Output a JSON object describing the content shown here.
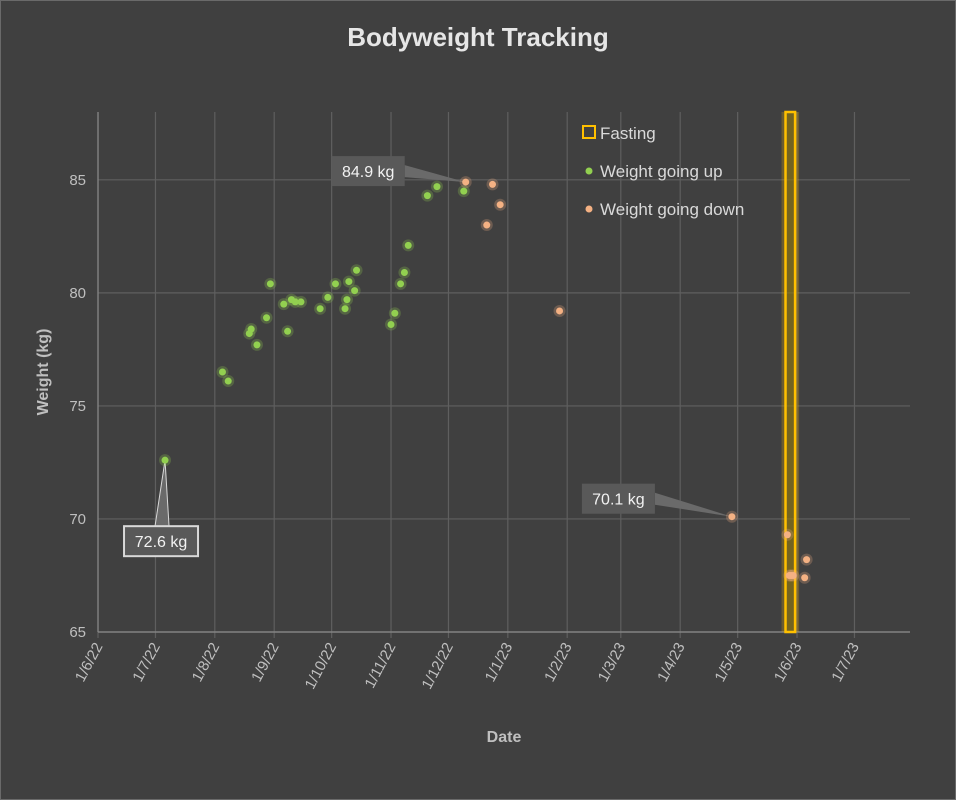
{
  "chart_data": {
    "type": "scatter",
    "title": "Bodyweight Tracking",
    "xlabel": "Date",
    "ylabel": "Weight (kg)",
    "xlim": [
      "2022-06-01",
      "2023-07-30"
    ],
    "ylim": [
      65,
      88
    ],
    "x_ticks": [
      {
        "date": "2022-06-01",
        "label": "1/6/22"
      },
      {
        "date": "2022-07-01",
        "label": "1/7/22"
      },
      {
        "date": "2022-08-01",
        "label": "1/8/22"
      },
      {
        "date": "2022-09-01",
        "label": "1/9/22"
      },
      {
        "date": "2022-10-01",
        "label": "1/10/22"
      },
      {
        "date": "2022-11-01",
        "label": "1/11/22"
      },
      {
        "date": "2022-12-01",
        "label": "1/12/22"
      },
      {
        "date": "2023-01-01",
        "label": "1/1/23"
      },
      {
        "date": "2023-02-01",
        "label": "1/2/23"
      },
      {
        "date": "2023-03-01",
        "label": "1/3/23"
      },
      {
        "date": "2023-04-01",
        "label": "1/4/23"
      },
      {
        "date": "2023-05-01",
        "label": "1/5/23"
      },
      {
        "date": "2023-06-01",
        "label": "1/6/23"
      },
      {
        "date": "2023-07-01",
        "label": "1/7/23"
      }
    ],
    "y_ticks": [
      65,
      70,
      75,
      80,
      85
    ],
    "grid": true,
    "legend_position": "top-right",
    "fasting": {
      "name": "Fasting",
      "start": "2023-05-26",
      "end": "2023-05-31",
      "color": "#ffc000"
    },
    "series": [
      {
        "name": "Weight going up",
        "color": "#92d050",
        "points": [
          [
            "2022-07-06",
            72.6
          ],
          [
            "2022-08-05",
            76.5
          ],
          [
            "2022-08-08",
            76.1
          ],
          [
            "2022-08-19",
            78.2
          ],
          [
            "2022-08-20",
            78.4
          ],
          [
            "2022-08-23",
            77.7
          ],
          [
            "2022-08-28",
            78.9
          ],
          [
            "2022-08-30",
            80.4
          ],
          [
            "2022-09-06",
            79.5
          ],
          [
            "2022-09-08",
            78.3
          ],
          [
            "2022-09-10",
            79.7
          ],
          [
            "2022-09-12",
            79.6
          ],
          [
            "2022-09-15",
            79.6
          ],
          [
            "2022-09-25",
            79.3
          ],
          [
            "2022-09-29",
            79.8
          ],
          [
            "2022-10-03",
            80.4
          ],
          [
            "2022-10-08",
            79.3
          ],
          [
            "2022-10-09",
            79.7
          ],
          [
            "2022-10-10",
            80.5
          ],
          [
            "2022-10-13",
            80.1
          ],
          [
            "2022-10-14",
            81.0
          ],
          [
            "2022-11-01",
            78.6
          ],
          [
            "2022-11-03",
            79.1
          ],
          [
            "2022-11-06",
            80.4
          ],
          [
            "2022-11-08",
            80.9
          ],
          [
            "2022-11-10",
            82.1
          ],
          [
            "2022-11-20",
            84.3
          ],
          [
            "2022-11-25",
            84.7
          ],
          [
            "2022-12-09",
            84.5
          ]
        ]
      },
      {
        "name": "Weight going down",
        "color": "#f4b183",
        "points": [
          [
            "2022-12-10",
            84.9
          ],
          [
            "2022-12-21",
            83.0
          ],
          [
            "2022-12-24",
            84.8
          ],
          [
            "2022-12-28",
            83.9
          ],
          [
            "2023-01-28",
            79.2
          ],
          [
            "2023-04-28",
            70.1
          ],
          [
            "2023-05-27",
            69.3
          ],
          [
            "2023-05-28",
            67.5
          ],
          [
            "2023-05-29",
            67.5
          ],
          [
            "2023-05-30",
            67.5
          ],
          [
            "2023-06-05",
            67.4
          ],
          [
            "2023-06-06",
            68.2
          ]
        ]
      }
    ],
    "annotations": [
      {
        "date": "2022-07-06",
        "value": 72.6,
        "text": "72.6 kg"
      },
      {
        "date": "2022-12-10",
        "value": 84.9,
        "text": "84.9 kg"
      },
      {
        "date": "2023-04-28",
        "value": 70.1,
        "text": "70.1 kg"
      }
    ]
  }
}
